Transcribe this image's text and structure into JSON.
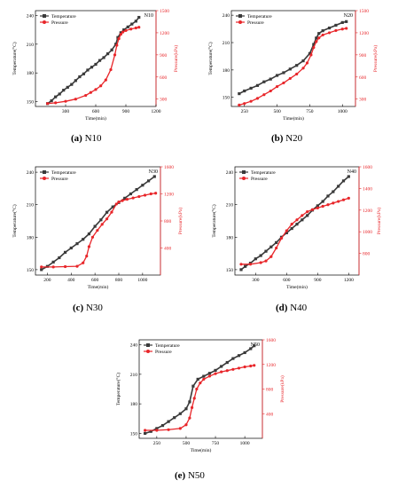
{
  "figure": {
    "captions": [
      {
        "letter": "(a)",
        "name": "N10"
      },
      {
        "letter": "(b)",
        "name": "N20"
      },
      {
        "letter": "(c)",
        "name": "N30"
      },
      {
        "letter": "(d)",
        "name": "N40"
      },
      {
        "letter": "(e)",
        "name": "N50"
      }
    ]
  },
  "colors": {
    "temperature": "#3a3a3a",
    "pressure": "#e8262a",
    "axis": "#000000"
  },
  "chart_data": [
    {
      "type": "line",
      "title": "N10",
      "xlabel": "Time(min)",
      "ylabel": "Temperature(°C)",
      "ylabel2": "Pressure(kPa)",
      "legend": [
        "Temperature",
        "Pressure"
      ],
      "legend_position": "top-left",
      "xlim": [
        0,
        1200
      ],
      "ylim": [
        145,
        245
      ],
      "y2lim": [
        200,
        1500
      ],
      "xticks": [
        300,
        600,
        900,
        1200
      ],
      "yticks": [
        150,
        180,
        210,
        240
      ],
      "y2ticks": [
        300,
        600,
        900,
        1200,
        1500
      ],
      "series": [
        {
          "name": "Temperature",
          "axis": "left",
          "x": [
            120,
            160,
            200,
            240,
            280,
            320,
            360,
            400,
            440,
            480,
            520,
            560,
            600,
            640,
            680,
            720,
            760,
            800,
            820,
            850,
            880,
            920,
            960,
            1000,
            1030
          ],
          "y": [
            148,
            151,
            155,
            158,
            162,
            165,
            168,
            172,
            176,
            179,
            183,
            186,
            189,
            193,
            196,
            200,
            204,
            210,
            217,
            222,
            225,
            228,
            231,
            234,
            238
          ]
        },
        {
          "name": "Pressure",
          "axis": "right",
          "x": [
            120,
            200,
            300,
            400,
            500,
            550,
            600,
            650,
            700,
            750,
            790,
            810,
            830,
            850,
            870,
            900,
            950,
            1000,
            1030
          ],
          "y": [
            240,
            250,
            270,
            300,
            350,
            390,
            430,
            480,
            560,
            700,
            900,
            1030,
            1120,
            1180,
            1210,
            1230,
            1250,
            1265,
            1275
          ]
        }
      ]
    },
    {
      "type": "line",
      "title": "N20",
      "xlabel": "Time(min)",
      "ylabel": "Temperature(°C)",
      "ylabel2": "Pressure(kPa)",
      "legend": [
        "Temperature",
        "Pressure"
      ],
      "legend_position": "top-left",
      "xlim": [
        150,
        1100
      ],
      "ylim": [
        140,
        245
      ],
      "y2lim": [
        200,
        1500
      ],
      "xticks": [
        250,
        500,
        750,
        1000
      ],
      "yticks": [
        150,
        180,
        210,
        240
      ],
      "y2ticks": [
        300,
        600,
        900,
        1200,
        1500
      ],
      "series": [
        {
          "name": "Temperature",
          "axis": "left",
          "x": [
            210,
            250,
            300,
            350,
            400,
            450,
            500,
            550,
            600,
            650,
            700,
            750,
            780,
            800,
            820,
            850,
            900,
            950,
            1000,
            1030
          ],
          "y": [
            154,
            157,
            160,
            163,
            167,
            170,
            174,
            177,
            181,
            185,
            190,
            198,
            208,
            215,
            220,
            223,
            226,
            229,
            232,
            233
          ]
        },
        {
          "name": "Pressure",
          "axis": "right",
          "x": [
            210,
            250,
            300,
            350,
            400,
            450,
            500,
            550,
            600,
            650,
            700,
            730,
            760,
            780,
            800,
            820,
            850,
            900,
            950,
            1000,
            1030
          ],
          "y": [
            220,
            240,
            270,
            310,
            360,
            410,
            470,
            520,
            580,
            640,
            720,
            790,
            900,
            1000,
            1080,
            1130,
            1170,
            1200,
            1230,
            1250,
            1260
          ]
        }
      ]
    },
    {
      "type": "line",
      "title": "N30",
      "xlabel": "Time(min)",
      "ylabel": "Temperature(°C)",
      "ylabel2": "Pressure(kPa)",
      "legend": [
        "Temperature",
        "Pressure"
      ],
      "legend_position": "top-left",
      "xlim": [
        100,
        1150
      ],
      "ylim": [
        145,
        245
      ],
      "y2lim": [
        0,
        1600
      ],
      "xticks": [
        200,
        400,
        600,
        800,
        1000
      ],
      "yticks": [
        150,
        180,
        210,
        240
      ],
      "y2ticks": [
        400,
        800,
        1200,
        1600
      ],
      "series": [
        {
          "name": "Temperature",
          "axis": "left",
          "x": [
            150,
            200,
            250,
            300,
            350,
            400,
            450,
            500,
            550,
            600,
            650,
            700,
            750,
            800,
            850,
            900,
            950,
            1000,
            1050,
            1100
          ],
          "y": [
            150,
            153,
            157,
            161,
            166,
            170,
            174,
            178,
            183,
            190,
            196,
            203,
            208,
            212,
            216,
            220,
            224,
            228,
            232,
            236
          ]
        },
        {
          "name": "Pressure",
          "axis": "right",
          "x": [
            150,
            250,
            350,
            450,
            500,
            530,
            550,
            580,
            620,
            660,
            700,
            740,
            780,
            800,
            830,
            870,
            920,
            970,
            1020,
            1070,
            1110
          ],
          "y": [
            120,
            120,
            125,
            130,
            180,
            280,
            420,
            560,
            660,
            750,
            830,
            930,
            1050,
            1080,
            1100,
            1120,
            1140,
            1160,
            1180,
            1200,
            1210
          ]
        }
      ]
    },
    {
      "type": "line",
      "title": "N40",
      "xlabel": "Time(min)",
      "ylabel": "Temperature(°C)",
      "ylabel2": "Pressure(kPa)",
      "legend": [
        "Temperature",
        "Pressure"
      ],
      "legend_position": "top-left",
      "xlim": [
        100,
        1300
      ],
      "ylim": [
        145,
        245
      ],
      "y2lim": [
        600,
        1600
      ],
      "xticks": [
        300,
        600,
        900,
        1200
      ],
      "yticks": [
        150,
        180,
        210,
        240
      ],
      "y2ticks": [
        800,
        1000,
        1200,
        1400,
        1600
      ],
      "series": [
        {
          "name": "Temperature",
          "axis": "left",
          "x": [
            160,
            200,
            250,
            300,
            350,
            400,
            450,
            500,
            550,
            600,
            650,
            700,
            750,
            800,
            850,
            900,
            950,
            1000,
            1050,
            1100,
            1150,
            1200
          ],
          "y": [
            150,
            153,
            156,
            160,
            163,
            167,
            171,
            175,
            180,
            184,
            188,
            192,
            196,
            200,
            205,
            209,
            213,
            218,
            222,
            227,
            232,
            236
          ]
        },
        {
          "name": "Pressure",
          "axis": "right",
          "x": [
            160,
            250,
            350,
            400,
            450,
            500,
            550,
            600,
            650,
            700,
            750,
            800,
            850,
            900,
            950,
            1000,
            1050,
            1100,
            1150,
            1200
          ],
          "y": [
            700,
            700,
            715,
            730,
            770,
            850,
            940,
            1010,
            1070,
            1110,
            1150,
            1185,
            1205,
            1220,
            1235,
            1250,
            1265,
            1280,
            1295,
            1310
          ]
        }
      ]
    },
    {
      "type": "line",
      "title": "N50",
      "xlabel": "Time(min)",
      "ylabel": "Temperature(°C)",
      "ylabel2": "Pressure(kPa)",
      "legend": [
        "Temperature",
        "Pressure"
      ],
      "legend_position": "top-left",
      "xlim": [
        100,
        1150
      ],
      "ylim": [
        145,
        245
      ],
      "y2lim": [
        0,
        1600
      ],
      "xticks": [
        250,
        500,
        750,
        1000
      ],
      "yticks": [
        150,
        180,
        210,
        240
      ],
      "y2ticks": [
        400,
        800,
        1200,
        1600
      ],
      "series": [
        {
          "name": "Temperature",
          "axis": "left",
          "x": [
            150,
            200,
            250,
            300,
            350,
            400,
            450,
            500,
            530,
            560,
            600,
            650,
            700,
            750,
            800,
            850,
            900,
            950,
            1000,
            1050,
            1080
          ],
          "y": [
            150,
            152,
            155,
            158,
            162,
            166,
            170,
            175,
            182,
            198,
            205,
            208,
            211,
            214,
            218,
            222,
            226,
            229,
            232,
            236,
            239
          ]
        },
        {
          "name": "Pressure",
          "axis": "right",
          "x": [
            150,
            250,
            350,
            450,
            500,
            530,
            550,
            570,
            590,
            620,
            650,
            700,
            750,
            800,
            850,
            900,
            950,
            1000,
            1050,
            1080
          ],
          "y": [
            130,
            130,
            140,
            160,
            220,
            330,
            500,
            650,
            800,
            900,
            960,
            1010,
            1050,
            1080,
            1100,
            1120,
            1140,
            1160,
            1175,
            1185
          ]
        }
      ]
    }
  ]
}
